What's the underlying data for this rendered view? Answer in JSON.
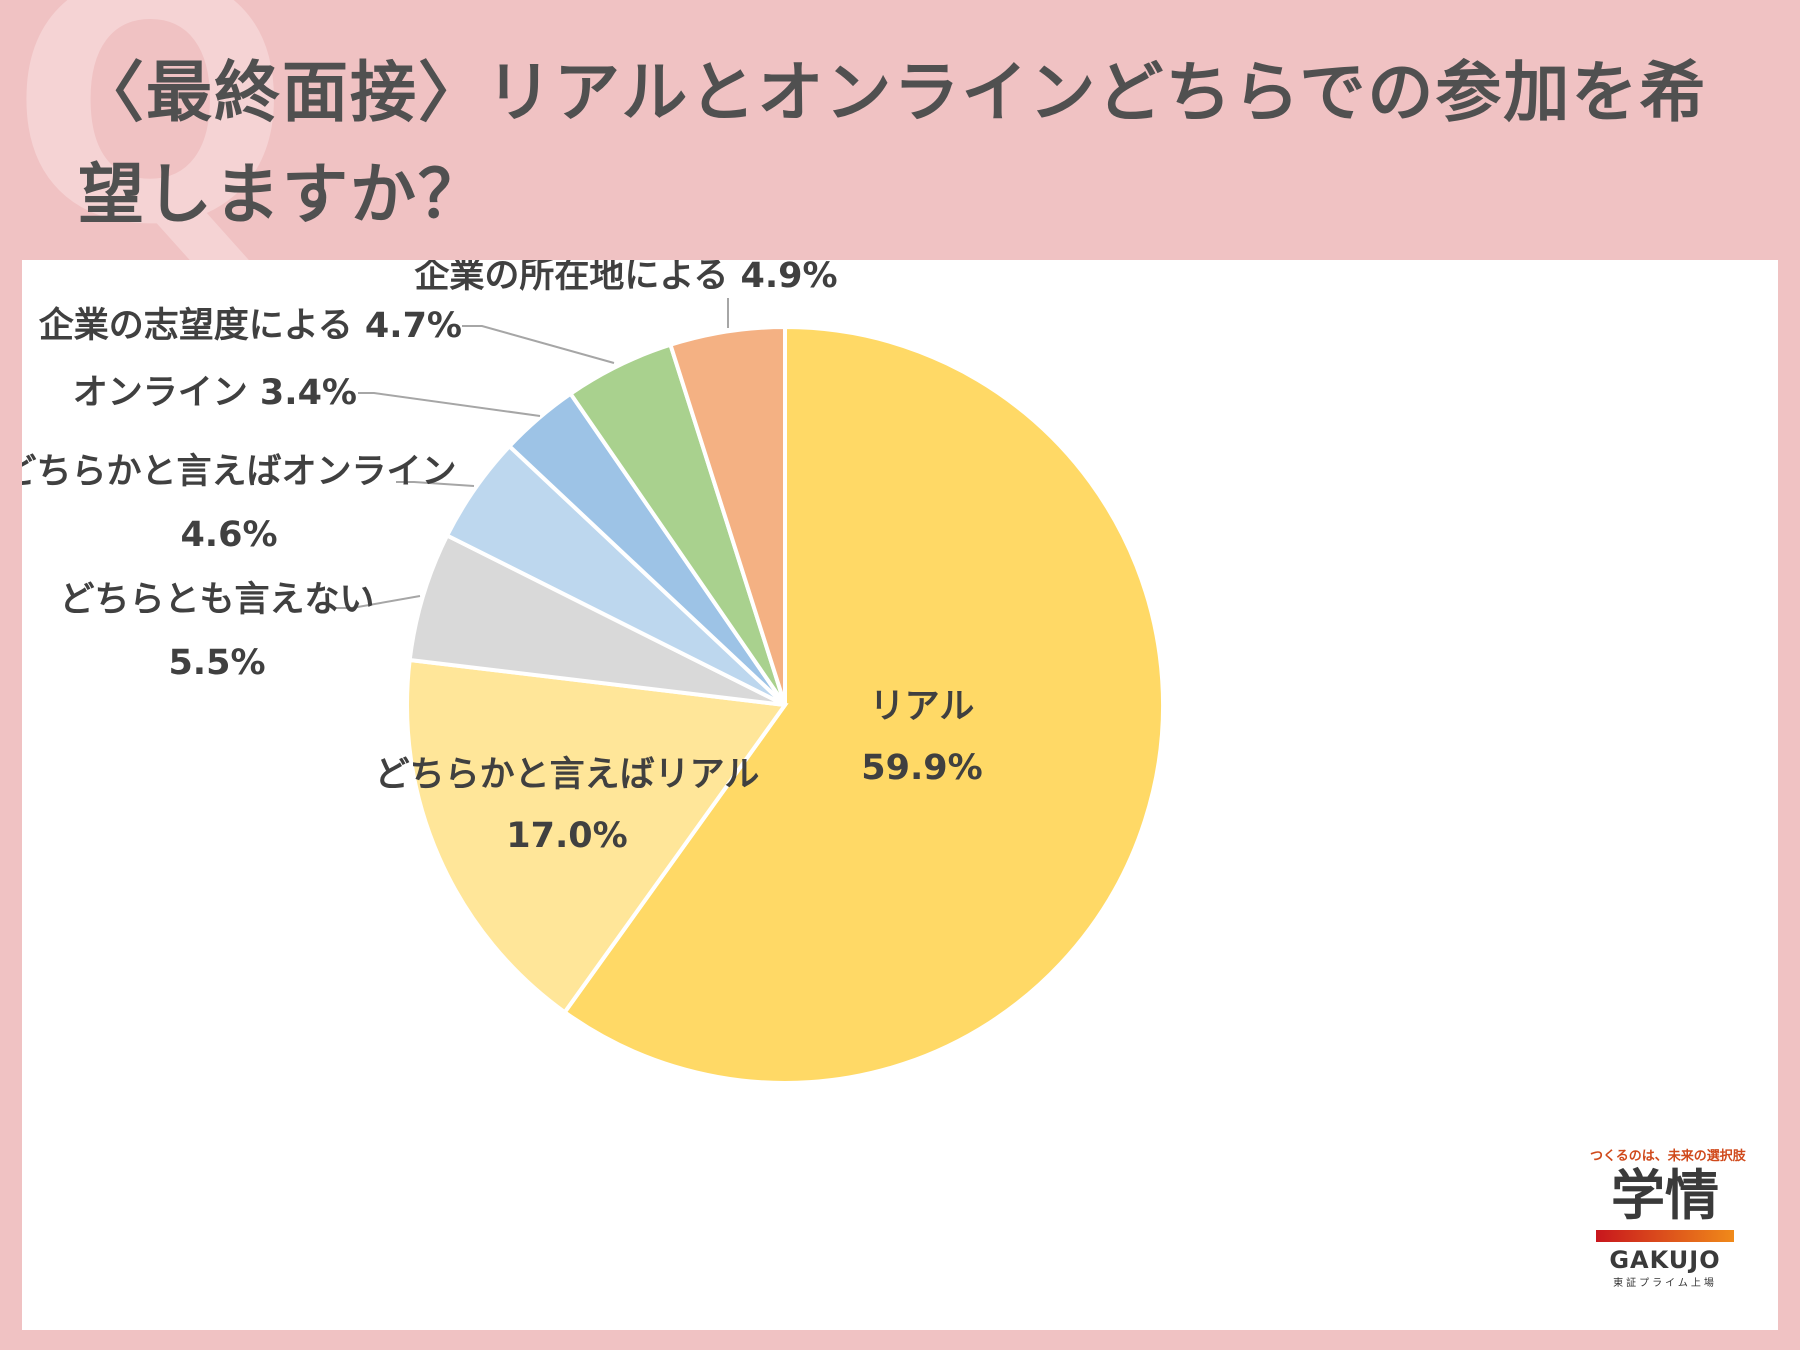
{
  "title": "〈最終面接〉リアルとオンラインどちらでの参加を希望しますか？",
  "q_mark": "Q",
  "chart_data": {
    "type": "pie",
    "title": "〈最終面接〉リアルとオンラインどちらでの参加を希望しますか？",
    "slices": [
      {
        "name": "リアル",
        "value": 59.9,
        "label": "59.9%",
        "color": "#ffd966"
      },
      {
        "name": "どちらかと言えばリアル",
        "value": 17.0,
        "label": "17.0%",
        "color": "#ffe699"
      },
      {
        "name": "どちらとも言えない",
        "value": 5.5,
        "label": "5.5%",
        "color": "#d9d9d9"
      },
      {
        "name": "どちらかと言えばオンライン",
        "value": 4.6,
        "label": "4.6%",
        "color": "#bdd7ee"
      },
      {
        "name": "オンライン",
        "value": 3.4,
        "label": "3.4%",
        "color": "#9dc3e6"
      },
      {
        "name": "企業の志望度による",
        "value": 4.7,
        "label": "4.7%",
        "color": "#a9d18e"
      },
      {
        "name": "企業の所在地による",
        "value": 4.9,
        "label": "4.9%",
        "color": "#f4b183"
      }
    ]
  },
  "logo": {
    "tagline": "つくるのは、未来の選択肢",
    "kanji": "学情",
    "english": "GAKUJO",
    "sub": "東証プライム上場"
  }
}
